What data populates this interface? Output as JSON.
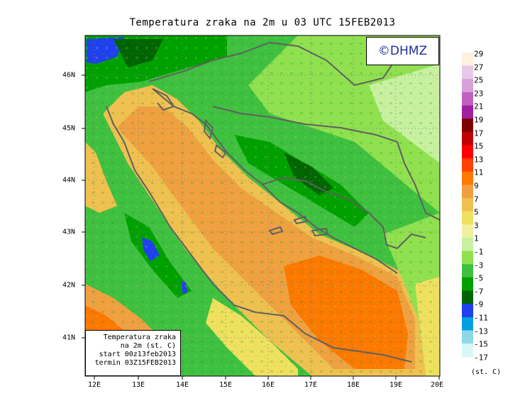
{
  "title": "Temperatura zraka na 2m u 03 UTC 15FEB2013",
  "logo_text": "©DHMZ",
  "info_box": {
    "line1": "Temperatura zraka",
    "line2": "na 2m (st. C)",
    "line3": "start 00z13feb2013",
    "line4": "termin 03Z15FEB2013"
  },
  "x_ticks": [
    "12E",
    "13E",
    "14E",
    "15E",
    "16E",
    "17E",
    "18E",
    "19E",
    "20E"
  ],
  "y_ticks": [
    "41N",
    "42N",
    "43N",
    "44N",
    "45N",
    "46N"
  ],
  "colorbar": {
    "labels": [
      "29",
      "27",
      "25",
      "23",
      "21",
      "19",
      "17",
      "15",
      "13",
      "11",
      "9",
      "7",
      "5",
      "3",
      "1",
      "-1",
      "-3",
      "-5",
      "-7",
      "-9",
      "-11",
      "-13",
      "-15",
      "-17"
    ],
    "colors": [
      "#fff0e0",
      "#e8c8e8",
      "#d8a0d8",
      "#c060c0",
      "#a020a0",
      "#800000",
      "#c00000",
      "#ff0000",
      "#ff4000",
      "#ff7800",
      "#f0a040",
      "#f0c050",
      "#f0e060",
      "#f0f0a0",
      "#c8f0a0",
      "#90e050",
      "#40c040",
      "#00a000",
      "#006400",
      "#2040f0",
      "#00a0e0",
      "#90d8e8",
      "#d8f8f8"
    ],
    "unit": "(st. C)"
  },
  "palette": {
    "sea_warm": "#ff7800",
    "sea_mid": "#f0a040",
    "coast_yellow": "#f0c050",
    "pale_yellow": "#f0e060",
    "light_green": "#90e050",
    "green": "#40c040",
    "dark_green": "#00a000",
    "deep_green": "#006400",
    "blue": "#2040f0",
    "border": "#606060"
  }
}
